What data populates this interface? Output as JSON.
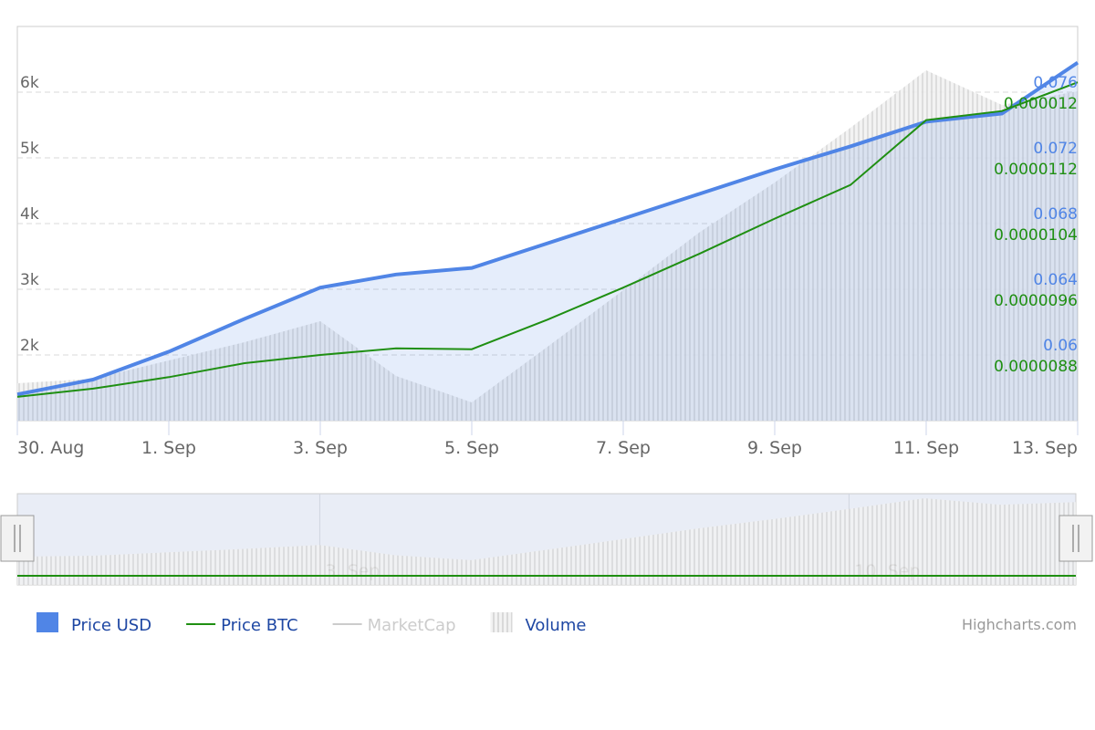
{
  "chart_data": {
    "type": "line",
    "categories": [
      "30. Aug",
      null,
      "1. Sep",
      null,
      "3. Sep",
      null,
      "5. Sep",
      null,
      "7. Sep",
      null,
      "9. Sep",
      null,
      "11. Sep",
      null,
      "13. Sep"
    ],
    "ylim": [
      1000,
      7000
    ],
    "yticks": [
      {
        "value": 2000,
        "label": "2k"
      },
      {
        "value": 3000,
        "label": "3k"
      },
      {
        "value": 4000,
        "label": "4k"
      },
      {
        "value": 5000,
        "label": "5k"
      },
      {
        "value": 6000,
        "label": "6k"
      }
    ],
    "y2lim": [
      0.056,
      0.08
    ],
    "y2ticks": [
      0.06,
      0.064,
      0.068,
      0.072,
      0.076
    ],
    "y3lim": [
      8e-06,
      1.28e-05
    ],
    "y3ticks": [
      8.8e-06,
      9.6e-06,
      1.04e-05,
      1.12e-05,
      1.2e-05
    ],
    "grid": true,
    "series": [
      {
        "name": "Price USD",
        "color": "#5085e6",
        "axis": "y2",
        "kind": "area",
        "values": [
          0.0576,
          0.0585,
          0.0602,
          0.0622,
          0.0641,
          0.0649,
          0.0653,
          0.0668,
          0.0683,
          0.0698,
          0.0713,
          0.0727,
          0.0742,
          0.0747,
          0.0778
        ]
      },
      {
        "name": "Price BTC",
        "color": "#1f8f12",
        "axis": "y3",
        "kind": "line",
        "values": [
          8.29e-06,
          8.39e-06,
          8.53e-06,
          8.7e-06,
          8.8e-06,
          8.88e-06,
          8.87e-06,
          9.23e-06,
          9.62e-06,
          1.003e-05,
          1.046e-05,
          1.087e-05,
          1.166e-05,
          1.177e-05,
          1.212e-05
        ]
      },
      {
        "name": "MarketCap",
        "color": "#cccccc",
        "kind": "line",
        "hidden": true
      },
      {
        "name": "Volume",
        "color": "#c8c8c8",
        "axis": "y",
        "kind": "pattern",
        "values": [
          1569,
          1639,
          1917,
          2194,
          2514,
          1681,
          1278,
          2125,
          2986,
          3861,
          4625,
          5458,
          6333,
          5806,
          6014
        ]
      }
    ],
    "navigator": {
      "labels": [
        {
          "value": 4,
          "label": "3. Sep"
        },
        {
          "value": 11,
          "label": "10. Sep"
        }
      ]
    },
    "credits": "Highcharts.com"
  }
}
